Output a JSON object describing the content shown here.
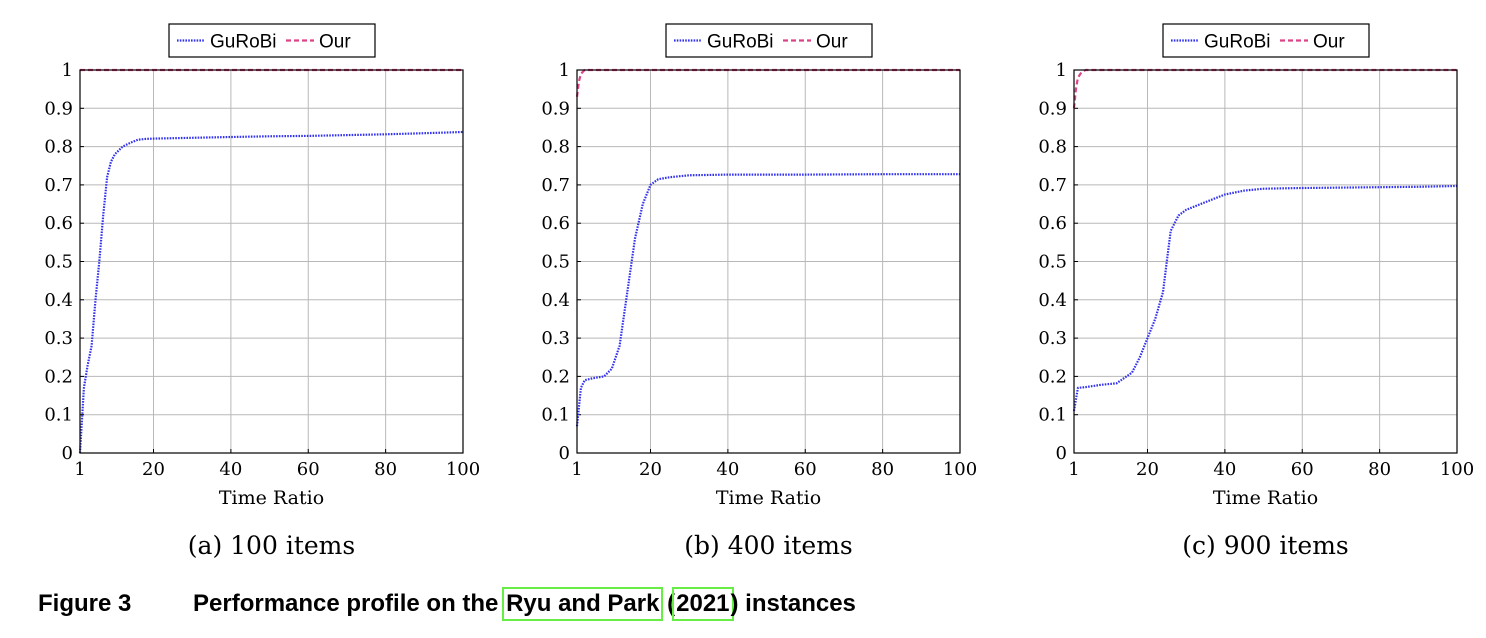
{
  "series_colors": {
    "gurobi": "#3333ee",
    "our": "#dd4488"
  },
  "chart_data": [
    {
      "type": "line",
      "subcaption": "(a) 100 items",
      "xlabel": "Time Ratio",
      "ylabel": "",
      "xlim": [
        1,
        100
      ],
      "ylim": [
        0,
        1
      ],
      "xticks": [
        1,
        20,
        40,
        60,
        80,
        100
      ],
      "yticks": [
        0,
        0.1,
        0.2,
        0.3,
        0.4,
        0.5,
        0.6,
        0.7,
        0.8,
        0.9,
        1
      ],
      "grid": true,
      "legend": "top-center",
      "series": [
        {
          "name": "GuRoBi",
          "style": "dotted",
          "x": [
            1,
            2,
            3,
            4,
            5,
            6,
            7,
            8,
            9,
            10,
            12,
            14,
            16,
            18,
            20,
            30,
            40,
            50,
            60,
            70,
            80,
            90,
            100
          ],
          "y": [
            0.0,
            0.17,
            0.23,
            0.28,
            0.4,
            0.5,
            0.62,
            0.72,
            0.76,
            0.78,
            0.8,
            0.81,
            0.818,
            0.82,
            0.821,
            0.823,
            0.825,
            0.827,
            0.828,
            0.83,
            0.832,
            0.835,
            0.838
          ]
        },
        {
          "name": "Our",
          "style": "dashed",
          "x": [
            1,
            100
          ],
          "y": [
            1.0,
            1.0
          ]
        }
      ]
    },
    {
      "type": "line",
      "subcaption": "(b) 400 items",
      "xlabel": "Time Ratio",
      "ylabel": "",
      "xlim": [
        1,
        100
      ],
      "ylim": [
        0,
        1
      ],
      "xticks": [
        1,
        20,
        40,
        60,
        80,
        100
      ],
      "yticks": [
        0,
        0.1,
        0.2,
        0.3,
        0.4,
        0.5,
        0.6,
        0.7,
        0.8,
        0.9,
        1
      ],
      "grid": true,
      "legend": "top-center",
      "series": [
        {
          "name": "GuRoBi",
          "style": "dotted",
          "x": [
            1,
            2,
            3,
            5,
            8,
            10,
            12,
            14,
            16,
            18,
            20,
            22,
            25,
            30,
            40,
            60,
            80,
            100
          ],
          "y": [
            0.07,
            0.17,
            0.19,
            0.195,
            0.2,
            0.22,
            0.28,
            0.42,
            0.56,
            0.65,
            0.7,
            0.715,
            0.72,
            0.725,
            0.727,
            0.727,
            0.728,
            0.728
          ]
        },
        {
          "name": "Our",
          "style": "dashed",
          "x": [
            1,
            1.5,
            2,
            3,
            100
          ],
          "y": [
            0.93,
            0.97,
            0.99,
            1.0,
            1.0
          ]
        }
      ]
    },
    {
      "type": "line",
      "subcaption": "(c) 900 items",
      "xlabel": "Time Ratio",
      "ylabel": "",
      "xlim": [
        1,
        100
      ],
      "ylim": [
        0,
        1
      ],
      "xticks": [
        1,
        20,
        40,
        60,
        80,
        100
      ],
      "yticks": [
        0,
        0.1,
        0.2,
        0.3,
        0.4,
        0.5,
        0.6,
        0.7,
        0.8,
        0.9,
        1
      ],
      "grid": true,
      "legend": "top-center",
      "series": [
        {
          "name": "GuRoBi",
          "style": "dotted",
          "x": [
            1,
            2,
            4,
            8,
            12,
            16,
            18,
            20,
            22,
            24,
            25,
            26,
            28,
            30,
            35,
            40,
            45,
            50,
            60,
            70,
            80,
            90,
            100
          ],
          "y": [
            0.11,
            0.17,
            0.172,
            0.178,
            0.182,
            0.21,
            0.25,
            0.3,
            0.35,
            0.42,
            0.5,
            0.58,
            0.62,
            0.635,
            0.655,
            0.675,
            0.685,
            0.69,
            0.692,
            0.693,
            0.694,
            0.695,
            0.697
          ]
        },
        {
          "name": "Our",
          "style": "dashed",
          "x": [
            1,
            1.5,
            2,
            3,
            4,
            100
          ],
          "y": [
            0.9,
            0.95,
            0.98,
            0.995,
            1.0,
            1.0
          ]
        }
      ]
    }
  ],
  "figure_caption": {
    "label": "Figure 3",
    "text_before": "Performance profile on the ",
    "cite_author": "Ryu and Park",
    "paren_open": " (",
    "cite_year": "2021",
    "text_after": ") instances"
  }
}
